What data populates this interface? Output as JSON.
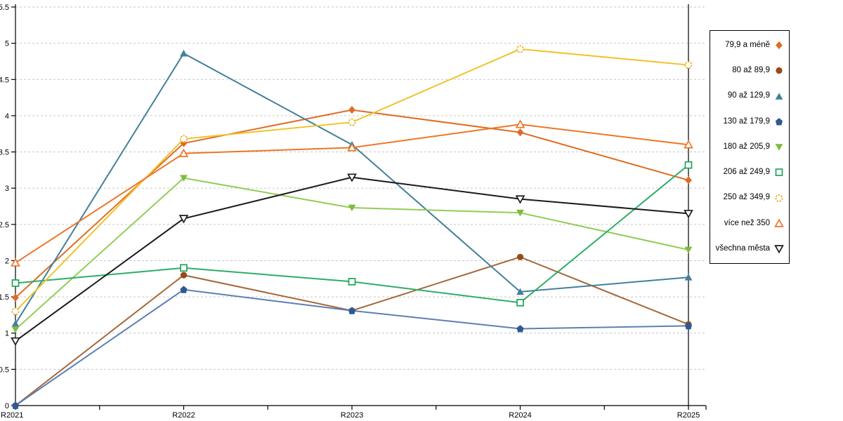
{
  "chart_data": {
    "type": "line",
    "title": "",
    "xlabel": "",
    "ylabel": "",
    "categories": [
      "R2021",
      "R2022",
      "R2023",
      "R2024",
      "R2025"
    ],
    "ylim": [
      0,
      5.5
    ],
    "y_tick_values": [
      0,
      0.5,
      1,
      1.5,
      2,
      2.5,
      3,
      3.5,
      4,
      4.5,
      5,
      5.5
    ],
    "y_tick_labels": [
      "0",
      "0.5",
      "1",
      "1.5",
      "2",
      "2.5",
      "3",
      "3.5",
      "4",
      "4.5",
      "5",
      "5.5"
    ],
    "grid": "horizontal-dashed",
    "legend_position": "right",
    "series": [
      {
        "name": "79,9 a méně",
        "marker": "diamond",
        "style": "filled",
        "color": "#dd6d26",
        "values": [
          1.49,
          3.62,
          4.08,
          3.77,
          3.11
        ]
      },
      {
        "name": "80 až 89,9",
        "marker": "circle",
        "style": "filled",
        "color": "#98491a",
        "line_color": "#a5673a",
        "values": [
          0.0,
          1.8,
          1.31,
          2.05,
          1.12
        ]
      },
      {
        "name": "90 až 129,9",
        "marker": "triangle-up",
        "style": "filled",
        "color": "#44809b",
        "values": [
          1.13,
          4.86,
          3.6,
          1.57,
          1.77
        ]
      },
      {
        "name": "130 až 179,9",
        "marker": "pentagon",
        "style": "filled",
        "color": "#2d5a92",
        "line_color": "#5d7fb2",
        "values": [
          0.0,
          1.6,
          1.31,
          1.06,
          1.1
        ]
      },
      {
        "name": "180 až 205,9",
        "marker": "triangle-down",
        "style": "filled",
        "color": "#80bb3d",
        "line_color": "#92cc55",
        "values": [
          1.05,
          3.14,
          2.73,
          2.66,
          2.15
        ]
      },
      {
        "name": "206 až 249,9",
        "marker": "square",
        "style": "open",
        "color": "#1fa45c",
        "line_color": "#2bae66",
        "values": [
          1.69,
          1.9,
          1.71,
          1.42,
          3.32
        ]
      },
      {
        "name": "250 až 349,9",
        "marker": "circle",
        "style": "open",
        "color": "#e6a912",
        "line_color": "#f2c22a",
        "marker_dash": true,
        "values": [
          1.3,
          3.68,
          3.91,
          4.92,
          4.7
        ]
      },
      {
        "name": "více než 350",
        "marker": "triangle-up",
        "style": "open",
        "color": "#ee7527",
        "values": [
          1.97,
          3.48,
          3.56,
          3.88,
          3.6
        ]
      },
      {
        "name": "všechna města",
        "marker": "triangle-down",
        "style": "open",
        "color": "#1b1b1b",
        "values": [
          0.89,
          2.58,
          3.15,
          2.85,
          2.65
        ]
      }
    ]
  }
}
